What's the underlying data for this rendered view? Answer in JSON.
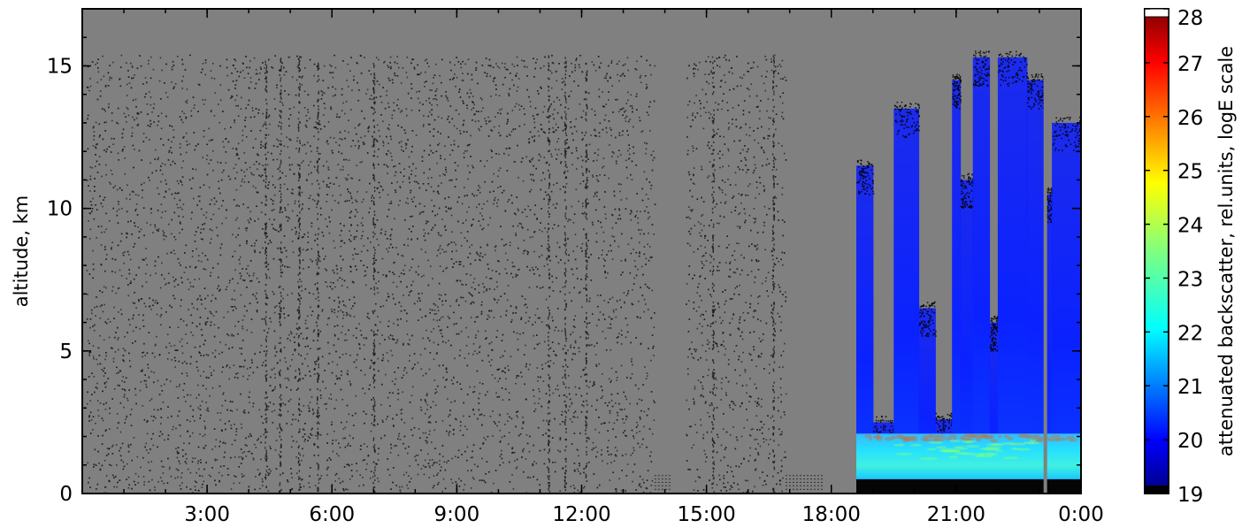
{
  "chart_data": {
    "type": "heatmap",
    "title": "",
    "xlabel": "",
    "ylabel": "altitude, km",
    "xlim_hours": [
      0,
      24
    ],
    "ylim": [
      0,
      17
    ],
    "x_ticks": [
      {
        "value": 3,
        "label": "3:00"
      },
      {
        "value": 6,
        "label": "6:00"
      },
      {
        "value": 9,
        "label": "9:00"
      },
      {
        "value": 12,
        "label": "12:00"
      },
      {
        "value": 15,
        "label": "15:00"
      },
      {
        "value": 18,
        "label": "18:00"
      },
      {
        "value": 21,
        "label": "21:00"
      },
      {
        "value": 24,
        "label": "0:00"
      }
    ],
    "y_ticks": [
      {
        "value": 0,
        "label": "0"
      },
      {
        "value": 5,
        "label": "5"
      },
      {
        "value": 10,
        "label": "10"
      },
      {
        "value": 15,
        "label": "15"
      }
    ],
    "colorbar": {
      "label": "attenuated backscatter, rel.units, logE scale",
      "range": [
        19,
        28
      ],
      "ticks": [
        {
          "value": 19,
          "label": "19"
        },
        {
          "value": 20,
          "label": "20"
        },
        {
          "value": 21,
          "label": "21"
        },
        {
          "value": 22,
          "label": "22"
        },
        {
          "value": 23,
          "label": "23"
        },
        {
          "value": 24,
          "label": "24"
        },
        {
          "value": 25,
          "label": "25"
        },
        {
          "value": 26,
          "label": "26"
        },
        {
          "value": 27,
          "label": "27"
        },
        {
          "value": 28,
          "label": "28"
        }
      ],
      "colormap": "jet"
    },
    "background_color": "#808080",
    "noise_color": "#1a1a1a",
    "signal_top_km": 15.4,
    "data_gaps_hours": [
      [
        13.75,
        14.5
      ],
      [
        16.9,
        18.6
      ]
    ],
    "cloud_columns": [
      {
        "start": 18.6,
        "end": 19.0,
        "top_km": 11.5
      },
      {
        "start": 19.0,
        "end": 19.5,
        "top_km": 2.5
      },
      {
        "start": 19.5,
        "end": 20.1,
        "top_km": 13.5
      },
      {
        "start": 20.1,
        "end": 20.5,
        "top_km": 6.5
      },
      {
        "start": 20.5,
        "end": 20.9,
        "top_km": 2.6
      },
      {
        "start": 20.9,
        "end": 21.1,
        "top_km": 14.5
      },
      {
        "start": 21.1,
        "end": 21.4,
        "top_km": 11.0
      },
      {
        "start": 21.4,
        "end": 21.8,
        "top_km": 15.3
      },
      {
        "start": 21.8,
        "end": 22.0,
        "top_km": 6.0
      },
      {
        "start": 22.0,
        "end": 22.7,
        "top_km": 15.3
      },
      {
        "start": 22.7,
        "end": 23.1,
        "top_km": 14.5
      },
      {
        "start": 23.1,
        "end": 23.3,
        "top_km": 10.5
      },
      {
        "start": 23.3,
        "end": 24.0,
        "top_km": 13.0
      }
    ],
    "boundary_layer": {
      "start": 18.6,
      "end": 24.0,
      "top_km": 2.1,
      "value": 22.0
    },
    "surface_layer_km": 0.5,
    "instrument_outage_hour": 23.1
  }
}
